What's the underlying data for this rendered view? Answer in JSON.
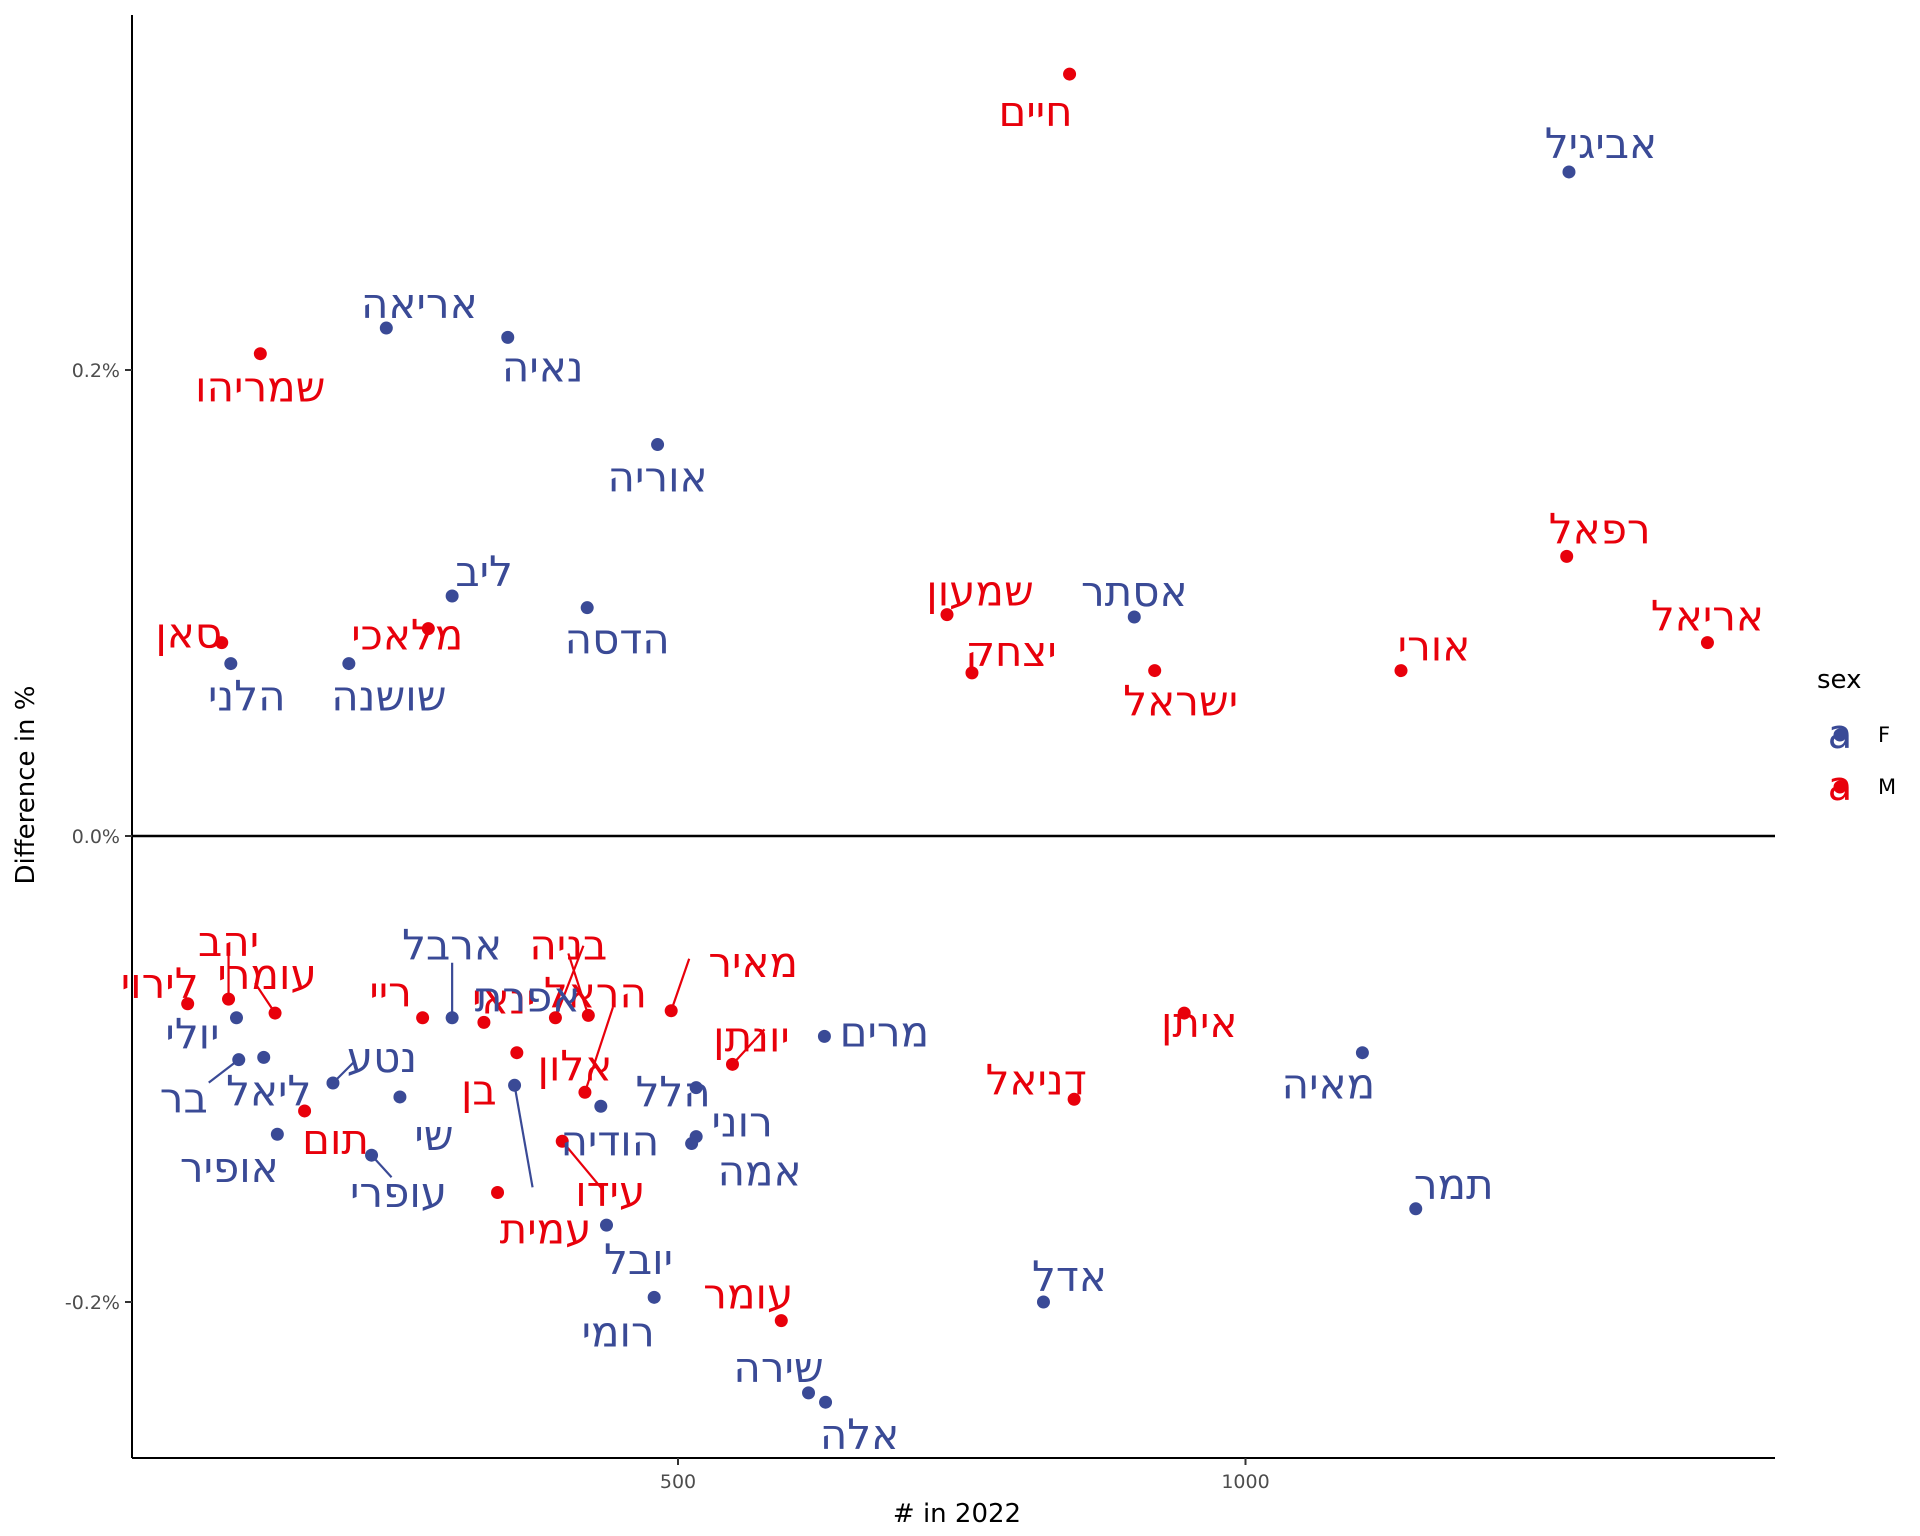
{
  "chart_data": {
    "type": "scatter",
    "xlabel": "# in 2022",
    "ylabel": "Difference in %",
    "xlim": [
      0,
      1475
    ],
    "ylim": [
      -0.27,
      0.355
    ],
    "x_ticks": [
      500,
      1000
    ],
    "y_ticks": [
      {
        "value": 0.2,
        "label": "0.2%"
      },
      {
        "value": 0.0,
        "label": "0.0%"
      },
      {
        "value": -0.2,
        "label": "-0.2%"
      }
    ],
    "reference_line_y": 0,
    "grid": false,
    "legend": {
      "title": "sex",
      "position": "right",
      "entries": [
        {
          "key": "F",
          "label": "F",
          "glyph": "a",
          "color": "#3a4a96"
        },
        {
          "key": "M",
          "label": "M",
          "glyph": "a",
          "color": "#e8000b"
        }
      ]
    },
    "colors": {
      "F": "#3a4a96",
      "M": "#e8000b"
    },
    "points": [
      {
        "name": "חיים",
        "sex": "M",
        "x": 845,
        "y": 0.327
      },
      {
        "name": "אביגיל",
        "sex": "F",
        "x": 1285,
        "y": 0.285
      },
      {
        "name": "אריאה",
        "sex": "F",
        "x": 243,
        "y": 0.218
      },
      {
        "name": "שמריהו",
        "sex": "M",
        "x": 132,
        "y": 0.207
      },
      {
        "name": "נאיה",
        "sex": "F",
        "x": 350,
        "y": 0.214
      },
      {
        "name": "אוריה",
        "sex": "F",
        "x": 482,
        "y": 0.168
      },
      {
        "name": "רפאל",
        "sex": "M",
        "x": 1283,
        "y": 0.12
      },
      {
        "name": "ליב",
        "sex": "F",
        "x": 301,
        "y": 0.103
      },
      {
        "name": "שמעון",
        "sex": "M",
        "x": 737,
        "y": 0.095
      },
      {
        "name": "אסתר",
        "sex": "F",
        "x": 902,
        "y": 0.094
      },
      {
        "name": "הדסה",
        "sex": "F",
        "x": 420,
        "y": 0.098
      },
      {
        "name": "סאן",
        "sex": "M",
        "x": 98,
        "y": 0.083
      },
      {
        "name": "מלאכי",
        "sex": "M",
        "x": 280,
        "y": 0.089
      },
      {
        "name": "אריאל",
        "sex": "M",
        "x": 1407,
        "y": 0.083
      },
      {
        "name": "יצחק",
        "sex": "M",
        "x": 759,
        "y": 0.07
      },
      {
        "name": "ישראל",
        "sex": "M",
        "x": 920,
        "y": 0.071
      },
      {
        "name": "אורי",
        "sex": "M",
        "x": 1137,
        "y": 0.071
      },
      {
        "name": "הלני",
        "sex": "F",
        "x": 106,
        "y": 0.074
      },
      {
        "name": "שושנה",
        "sex": "F",
        "x": 210,
        "y": 0.074
      },
      {
        "name": "יהב",
        "sex": "M",
        "x": 104,
        "y": -0.07
      },
      {
        "name": "לירוי",
        "sex": "M",
        "x": 68,
        "y": -0.072
      },
      {
        "name": "עומרי",
        "sex": "M",
        "x": 145,
        "y": -0.076
      },
      {
        "name": "יולי",
        "sex": "F",
        "x": 111,
        "y": -0.078
      },
      {
        "name": "ארבל",
        "sex": "F",
        "x": 301,
        "y": -0.078
      },
      {
        "name": "ריי",
        "sex": "M",
        "x": 275,
        "y": -0.078
      },
      {
        "name": "ינאי",
        "sex": "M",
        "x": 329,
        "y": -0.08
      },
      {
        "name": "בניה",
        "sex": "M",
        "x": 421,
        "y": -0.077
      },
      {
        "name": "הראל",
        "sex": "M",
        "x": 392,
        "y": -0.078
      },
      {
        "name": "מאיר",
        "sex": "M",
        "x": 494,
        "y": -0.075
      },
      {
        "name": "מרים",
        "sex": "F",
        "x": 629,
        "y": -0.086
      },
      {
        "name": "איתן",
        "sex": "M",
        "x": 946,
        "y": -0.076
      },
      {
        "name": "מאיה",
        "sex": "F",
        "x": 1103,
        "y": -0.093
      },
      {
        "name": "יונתן",
        "sex": "M",
        "x": 548,
        "y": -0.098
      },
      {
        "name": "הלל",
        "sex": "F",
        "x": 516,
        "y": -0.108
      },
      {
        "name": "ליאל",
        "sex": "F",
        "x": 135,
        "y": -0.095
      },
      {
        "name": "בר",
        "sex": "F",
        "x": 113,
        "y": -0.096
      },
      {
        "name": "נטע",
        "sex": "F",
        "x": 196,
        "y": -0.106
      },
      {
        "name": "בן",
        "sex": "M",
        "x": 358,
        "y": -0.093
      },
      {
        "name": "אלון",
        "sex": "M",
        "x": 418,
        "y": -0.11
      },
      {
        "name": "דניאל",
        "sex": "M",
        "x": 849,
        "y": -0.113
      },
      {
        "name": "שי",
        "sex": "F",
        "x": 255,
        "y": -0.112
      },
      {
        "name": "אפרת",
        "sex": "F",
        "x": 356,
        "y": -0.107
      },
      {
        "name": "רוני",
        "sex": "F",
        "x": 516,
        "y": -0.129
      },
      {
        "name": "הודיה",
        "sex": "F",
        "x": 432,
        "y": -0.116
      },
      {
        "name": "אמה",
        "sex": "F",
        "x": 512,
        "y": -0.132
      },
      {
        "name": "תום",
        "sex": "M",
        "x": 171,
        "y": -0.118
      },
      {
        "name": "עידו",
        "sex": "M",
        "x": 398,
        "y": -0.131
      },
      {
        "name": "אופיר",
        "sex": "F",
        "x": 147,
        "y": -0.128
      },
      {
        "name": "עופרי",
        "sex": "F",
        "x": 230,
        "y": -0.137
      },
      {
        "name": "עמית",
        "sex": "M",
        "x": 341,
        "y": -0.153
      },
      {
        "name": "תמר",
        "sex": "F",
        "x": 1150,
        "y": -0.16
      },
      {
        "name": "יובל",
        "sex": "F",
        "x": 437,
        "y": -0.167
      },
      {
        "name": "אדל",
        "sex": "F",
        "x": 822,
        "y": -0.2
      },
      {
        "name": "רומי",
        "sex": "F",
        "x": 479,
        "y": -0.198
      },
      {
        "name": "עומר",
        "sex": "M",
        "x": 591,
        "y": -0.208
      },
      {
        "name": "שירה",
        "sex": "F",
        "x": 615,
        "y": -0.239
      },
      {
        "name": "אלה",
        "sex": "F",
        "x": 630,
        "y": -0.243
      }
    ]
  }
}
